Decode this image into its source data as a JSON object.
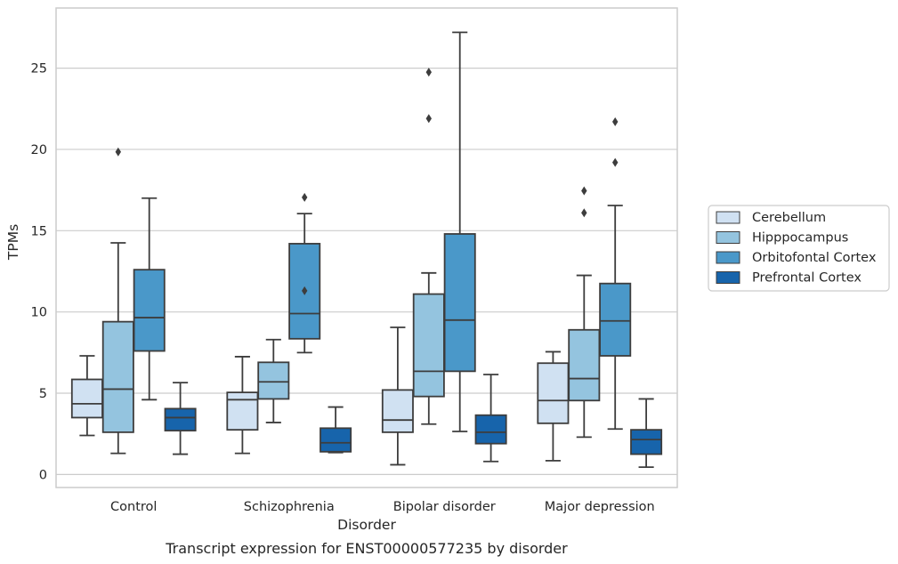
{
  "chart_data": {
    "type": "box",
    "title": "",
    "caption": "Transcript expression for ENST00000577235 by disorder",
    "xlabel": "Disorder",
    "ylabel": "TPMs",
    "ylim": [
      -0.8,
      28.7
    ],
    "yticks": [
      0,
      5,
      10,
      15,
      20,
      25
    ],
    "grid": "horizontal",
    "legend_position": "right",
    "categories": [
      "Control",
      "Schizophrenia",
      "Bipolar disorder",
      "Major depression"
    ],
    "series": [
      {
        "name": "Cerebellum",
        "color": "#d0e1f2",
        "boxes": [
          {
            "whislo": 2.4,
            "q1": 3.5,
            "med": 4.35,
            "q3": 5.85,
            "whishi": 7.3,
            "fliers": []
          },
          {
            "whislo": 1.3,
            "q1": 2.75,
            "med": 4.6,
            "q3": 5.05,
            "whishi": 7.25,
            "fliers": []
          },
          {
            "whislo": 0.6,
            "q1": 2.6,
            "med": 3.35,
            "q3": 5.2,
            "whishi": 9.05,
            "fliers": []
          },
          {
            "whislo": 0.85,
            "q1": 3.15,
            "med": 4.55,
            "q3": 6.85,
            "whishi": 7.55,
            "fliers": []
          }
        ]
      },
      {
        "name": "Hipppocampus",
        "color": "#94c4df",
        "boxes": [
          {
            "whislo": 1.3,
            "q1": 2.6,
            "med": 5.25,
            "q3": 9.4,
            "whishi": 14.25,
            "fliers": [
              19.85
            ]
          },
          {
            "whislo": 3.2,
            "q1": 4.65,
            "med": 5.7,
            "q3": 6.9,
            "whishi": 8.3,
            "fliers": []
          },
          {
            "whislo": 3.1,
            "q1": 4.8,
            "med": 6.35,
            "q3": 11.1,
            "whishi": 12.4,
            "fliers": [
              21.9,
              24.75
            ]
          },
          {
            "whislo": 2.3,
            "q1": 4.55,
            "med": 5.9,
            "q3": 8.9,
            "whishi": 12.25,
            "fliers": [
              16.1,
              17.45
            ]
          }
        ]
      },
      {
        "name": "Orbitofontal Cortex",
        "color": "#4a98c9",
        "boxes": [
          {
            "whislo": 4.6,
            "q1": 7.6,
            "med": 9.65,
            "q3": 12.6,
            "whishi": 17.0,
            "fliers": []
          },
          {
            "whislo": 7.5,
            "q1": 8.35,
            "med": 9.9,
            "q3": 14.2,
            "whishi": 16.05,
            "fliers": [
              11.3,
              17.05
            ]
          },
          {
            "whislo": 2.65,
            "q1": 6.35,
            "med": 9.5,
            "q3": 14.8,
            "whishi": 27.2,
            "fliers": []
          },
          {
            "whislo": 2.8,
            "q1": 7.3,
            "med": 9.45,
            "q3": 11.75,
            "whishi": 16.55,
            "fliers": [
              19.2,
              21.7
            ]
          }
        ]
      },
      {
        "name": "Prefrontal Cortex",
        "color": "#1764ab",
        "boxes": [
          {
            "whislo": 1.25,
            "q1": 2.7,
            "med": 3.5,
            "q3": 4.05,
            "whishi": 5.65,
            "fliers": []
          },
          {
            "whislo": 1.35,
            "q1": 1.4,
            "med": 1.95,
            "q3": 2.85,
            "whishi": 4.15,
            "fliers": []
          },
          {
            "whislo": 0.8,
            "q1": 1.9,
            "med": 2.6,
            "q3": 3.65,
            "whishi": 6.15,
            "fliers": []
          },
          {
            "whislo": 0.45,
            "q1": 1.25,
            "med": 2.15,
            "q3": 2.75,
            "whishi": 4.65,
            "fliers": []
          }
        ]
      }
    ]
  }
}
